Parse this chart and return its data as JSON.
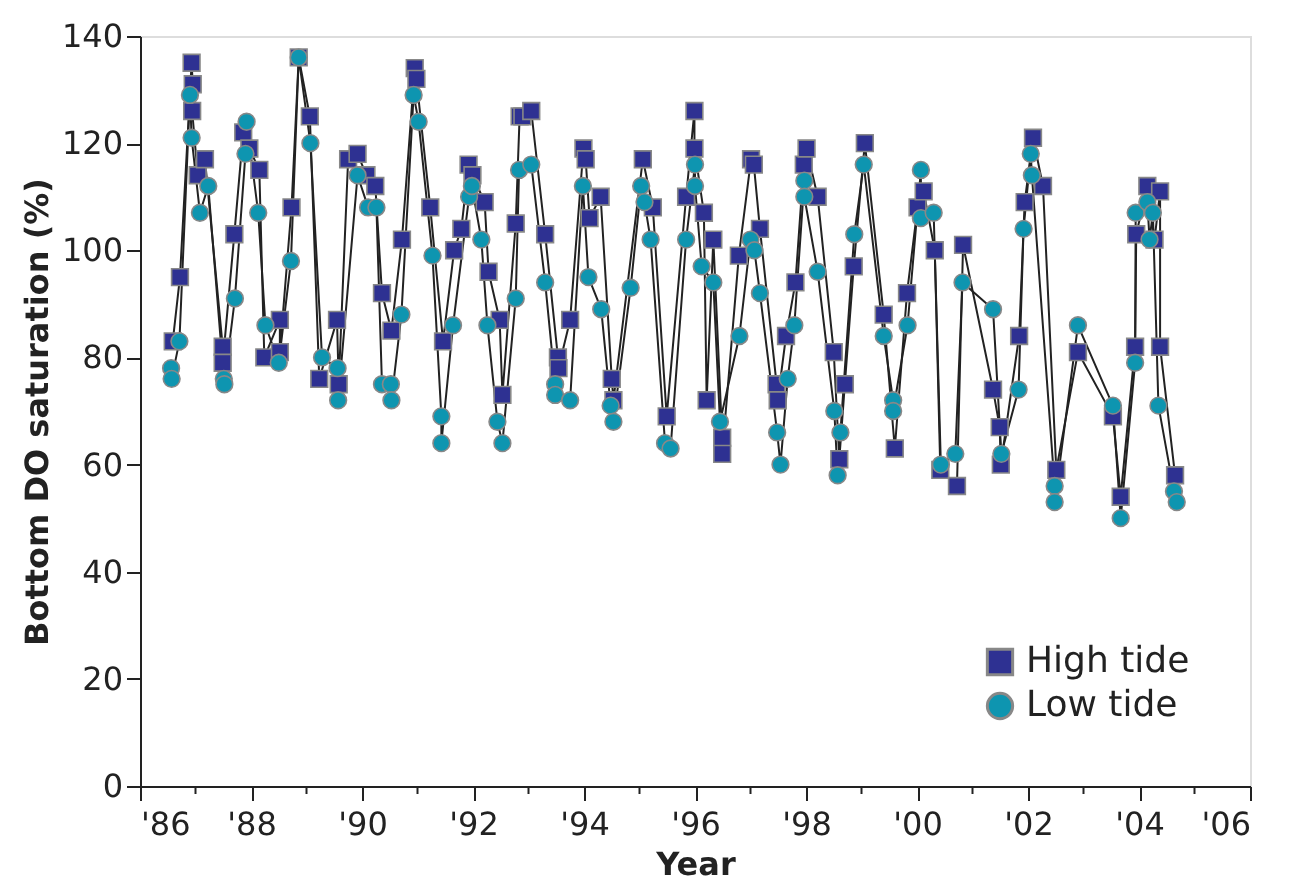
{
  "chart_data": {
    "type": "line",
    "xlabel": "Year",
    "ylabel": "Bottom DO saturation (%)",
    "xlim": [
      1986,
      2006
    ],
    "ylim": [
      0,
      140
    ],
    "xticks": [
      {
        "value": 1986,
        "label": "'86"
      },
      {
        "value": 1987,
        "label": null
      },
      {
        "value": 1988,
        "label": "'88"
      },
      {
        "value": 1989,
        "label": null
      },
      {
        "value": 1990,
        "label": "'90"
      },
      {
        "value": 1991,
        "label": null
      },
      {
        "value": 1992,
        "label": "'92"
      },
      {
        "value": 1993,
        "label": null
      },
      {
        "value": 1994,
        "label": "'94"
      },
      {
        "value": 1995,
        "label": null
      },
      {
        "value": 1996,
        "label": "'96"
      },
      {
        "value": 1997,
        "label": null
      },
      {
        "value": 1998,
        "label": "'98"
      },
      {
        "value": 1999,
        "label": null
      },
      {
        "value": 2000,
        "label": "'00"
      },
      {
        "value": 2001,
        "label": null
      },
      {
        "value": 2002,
        "label": "'02"
      },
      {
        "value": 2003,
        "label": null
      },
      {
        "value": 2004,
        "label": "'04"
      },
      {
        "value": 2005,
        "label": null
      },
      {
        "value": 2006,
        "label": "'06"
      }
    ],
    "yticks": [
      0,
      20,
      40,
      60,
      80,
      100,
      120,
      140
    ],
    "grid": false,
    "legend": "bottom right",
    "series": [
      {
        "name": "High tide",
        "color": "#2e3192",
        "marker": "square",
        "x": [
          1986.59,
          1986.72,
          1986.93,
          1986.95,
          1986.94,
          1987.04,
          1987.17,
          1987.49,
          1987.49,
          1987.7,
          1987.86,
          1987.97,
          1988.15,
          1988.24,
          1988.52,
          1988.52,
          1988.73,
          1988.86,
          1989.06,
          1989.23,
          1989.55,
          1989.58,
          1989.75,
          1989.92,
          1990.08,
          1990.24,
          1990.36,
          1990.53,
          1990.72,
          1990.95,
          1990.98,
          1991.23,
          1991.46,
          1991.66,
          1991.79,
          1991.92,
          1991.99,
          1992.21,
          1992.28,
          1992.48,
          1992.53,
          1992.77,
          1992.84,
          1992.89,
          1993.05,
          1993.3,
          1993.53,
          1993.54,
          1993.75,
          1993.99,
          1994.03,
          1994.1,
          1994.3,
          1994.5,
          1994.53,
          1995.06,
          1995.24,
          1995.49,
          1995.84,
          1995.99,
          1995.99,
          1996.16,
          1996.21,
          1996.33,
          1996.49,
          1996.49,
          1996.79,
          1997.01,
          1997.06,
          1997.17,
          1997.47,
          1997.49,
          1997.64,
          1997.81,
          1997.96,
          1998.01,
          1998.21,
          1998.5,
          1998.6,
          1998.7,
          1998.86,
          1999.06,
          1999.4,
          1999.6,
          1999.82,
          2000.01,
          2000.12,
          2000.32,
          2000.42,
          2000.72,
          2000.83,
          2001.37,
          2001.49,
          2001.51,
          2001.84,
          2001.94,
          2002.09,
          2002.27,
          2002.51,
          2002.9,
          2003.53,
          2003.67,
          2003.93,
          2003.95,
          2004.15,
          2004.28,
          2004.38,
          2004.38,
          2004.65
        ],
        "values": [
          83,
          95,
          135,
          131,
          126,
          114,
          117,
          82,
          79,
          103,
          122,
          119,
          115,
          80,
          87,
          81,
          108,
          136,
          125,
          76,
          87,
          75,
          117,
          118,
          114,
          112,
          92,
          85,
          102,
          134,
          132,
          108,
          83,
          100,
          104,
          116,
          114,
          109,
          96,
          87,
          73,
          105,
          125,
          125,
          126,
          103,
          80,
          78,
          87,
          119,
          117,
          106,
          110,
          76,
          72,
          117,
          108,
          69,
          110,
          126,
          119,
          107,
          72,
          102,
          65,
          62,
          99,
          117,
          116,
          104,
          75,
          72,
          84,
          94,
          116,
          119,
          110,
          81,
          61,
          75,
          97,
          120,
          88,
          63,
          92,
          108,
          111,
          100,
          59,
          56,
          101,
          74,
          67,
          60,
          84,
          109,
          121,
          112,
          59,
          81,
          69,
          54,
          82,
          103,
          112,
          102,
          111,
          82,
          58
        ]
      },
      {
        "name": "Low tide",
        "color": "#0e95b0",
        "marker": "circle",
        "x": [
          1986.56,
          1986.57,
          1986.71,
          1986.9,
          1986.93,
          1987.08,
          1987.23,
          1987.51,
          1987.52,
          1987.71,
          1987.9,
          1987.92,
          1988.13,
          1988.26,
          1988.5,
          1988.72,
          1988.86,
          1989.07,
          1989.28,
          1989.56,
          1989.57,
          1989.92,
          1990.11,
          1990.26,
          1990.36,
          1990.52,
          1990.53,
          1990.71,
          1990.93,
          1991.02,
          1991.27,
          1991.43,
          1991.43,
          1991.64,
          1991.93,
          1991.98,
          1992.15,
          1992.26,
          1992.44,
          1992.53,
          1992.77,
          1992.83,
          1993.05,
          1993.3,
          1993.48,
          1993.48,
          1993.75,
          1993.98,
          1994.08,
          1994.31,
          1994.48,
          1994.53,
          1994.84,
          1995.03,
          1995.09,
          1995.2,
          1995.46,
          1995.56,
          1995.84,
          1996.0,
          1996.0,
          1996.12,
          1996.33,
          1996.45,
          1996.8,
          1997.0,
          1997.07,
          1997.17,
          1997.48,
          1997.54,
          1997.67,
          1997.79,
          1997.97,
          1997.97,
          1998.21,
          1998.51,
          1998.57,
          1998.62,
          1998.87,
          1999.04,
          1999.4,
          1999.57,
          1999.57,
          1999.83,
          2000.07,
          2000.07,
          2000.3,
          2000.43,
          2000.69,
          2000.82,
          2001.37,
          2001.52,
          2001.83,
          2001.92,
          2002.05,
          2002.07,
          2002.48,
          2002.48,
          2002.9,
          2003.53,
          2003.67,
          2003.93,
          2003.94,
          2004.15,
          2004.19,
          2004.25,
          2004.35,
          2004.63,
          2004.68
        ],
        "values": [
          78,
          76,
          83,
          129,
          121,
          107,
          112,
          76,
          75,
          91,
          118,
          124,
          107,
          86,
          79,
          98,
          136,
          120,
          80,
          78,
          72,
          114,
          108,
          108,
          75,
          75,
          72,
          88,
          129,
          124,
          99,
          69,
          64,
          86,
          110,
          112,
          102,
          86,
          68,
          64,
          91,
          115,
          116,
          94,
          75,
          73,
          72,
          112,
          95,
          89,
          71,
          68,
          93,
          112,
          109,
          102,
          64,
          63,
          102,
          116,
          112,
          97,
          94,
          68,
          84,
          102,
          100,
          92,
          66,
          60,
          76,
          86,
          113,
          110,
          96,
          70,
          58,
          66,
          103,
          116,
          84,
          72,
          70,
          86,
          115,
          106,
          107,
          60,
          62,
          94,
          89,
          62,
          74,
          104,
          118,
          114,
          56,
          53,
          86,
          71,
          50,
          79,
          107,
          109,
          102,
          107,
          71,
          55,
          53
        ]
      }
    ]
  }
}
